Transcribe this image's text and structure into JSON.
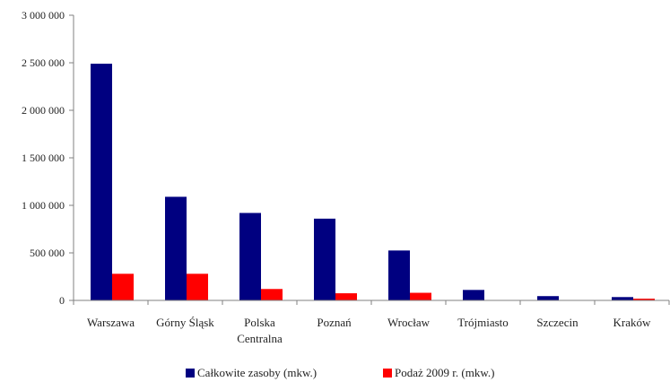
{
  "colors": {
    "series1": "#000080",
    "series2": "#ff0000",
    "axis": "#808080"
  },
  "chart_data": {
    "type": "bar",
    "categories": [
      [
        "Warszawa"
      ],
      [
        "Górny Śląsk"
      ],
      [
        "Polska",
        "Centralna"
      ],
      [
        "Poznań"
      ],
      [
        "Wrocław"
      ],
      [
        "Trójmiasto"
      ],
      [
        "Szczecin"
      ],
      [
        "Kraków"
      ]
    ],
    "series": [
      {
        "name": "Całkowite zasoby (mkw.)",
        "values": [
          2490000,
          1090000,
          920000,
          860000,
          525000,
          110000,
          45000,
          35000
        ]
      },
      {
        "name": "Podaż 2009 r. (mkw.)",
        "values": [
          280000,
          280000,
          120000,
          75000,
          80000,
          0,
          0,
          18000
        ]
      }
    ],
    "y_ticks": [
      "0",
      "500 000",
      "1 000 000",
      "1 500 000",
      "2 000 000",
      "2 500 000",
      "3 000 000"
    ],
    "ylim": [
      0,
      3000000
    ],
    "grid": false,
    "legend_position": "bottom"
  }
}
